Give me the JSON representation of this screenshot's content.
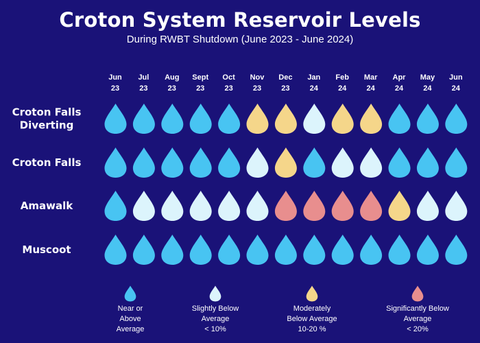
{
  "title": "Croton System Reservoir Levels",
  "subtitle": "During RWBT Shutdown (June 2023 - June 2024)",
  "colors": {
    "near_or_above": "#48c4f2",
    "slightly_below": "#dcf4fc",
    "moderately_below": "#f5d68a",
    "significantly_below": "#e88e8e",
    "background": "#1a1278"
  },
  "chart_data": {
    "type": "table",
    "months": [
      {
        "month": "Jun",
        "year": "23"
      },
      {
        "month": "Jul",
        "year": "23"
      },
      {
        "month": "Aug",
        "year": "23"
      },
      {
        "month": "Sept",
        "year": "23"
      },
      {
        "month": "Oct",
        "year": "23"
      },
      {
        "month": "Nov",
        "year": "23"
      },
      {
        "month": "Dec",
        "year": "23"
      },
      {
        "month": "Jan",
        "year": "24"
      },
      {
        "month": "Feb",
        "year": "24"
      },
      {
        "month": "Mar",
        "year": "24"
      },
      {
        "month": "Apr",
        "year": "24"
      },
      {
        "month": "May",
        "year": "24"
      },
      {
        "month": "Jun",
        "year": "24"
      }
    ],
    "reservoirs": [
      {
        "label_lines": [
          "Croton Falls",
          "Diverting"
        ],
        "levels": [
          "near_or_above",
          "near_or_above",
          "near_or_above",
          "near_or_above",
          "near_or_above",
          "moderately_below",
          "moderately_below",
          "slightly_below",
          "moderately_below",
          "moderately_below",
          "near_or_above",
          "near_or_above",
          "near_or_above"
        ]
      },
      {
        "label_lines": [
          "Croton Falls"
        ],
        "levels": [
          "near_or_above",
          "near_or_above",
          "near_or_above",
          "near_or_above",
          "near_or_above",
          "slightly_below",
          "moderately_below",
          "near_or_above",
          "slightly_below",
          "slightly_below",
          "near_or_above",
          "near_or_above",
          "near_or_above"
        ]
      },
      {
        "label_lines": [
          "Amawalk"
        ],
        "levels": [
          "near_or_above",
          "slightly_below",
          "slightly_below",
          "slightly_below",
          "slightly_below",
          "slightly_below",
          "significantly_below",
          "significantly_below",
          "significantly_below",
          "significantly_below",
          "moderately_below",
          "slightly_below",
          "slightly_below"
        ]
      },
      {
        "label_lines": [
          "Muscoot"
        ],
        "levels": [
          "near_or_above",
          "near_or_above",
          "near_or_above",
          "near_or_above",
          "near_or_above",
          "near_or_above",
          "near_or_above",
          "near_or_above",
          "near_or_above",
          "near_or_above",
          "near_or_above",
          "near_or_above",
          "near_or_above"
        ]
      }
    ]
  },
  "legend": [
    {
      "key": "near_or_above",
      "text": "Near or\nAbove\nAverage"
    },
    {
      "key": "slightly_below",
      "text": "Slightly Below\nAverage\n< 10%"
    },
    {
      "key": "moderately_below",
      "text": "Moderately\nBelow Average\n10-20 %"
    },
    {
      "key": "significantly_below",
      "text": "Significantly Below\nAverage\n< 20%"
    }
  ]
}
